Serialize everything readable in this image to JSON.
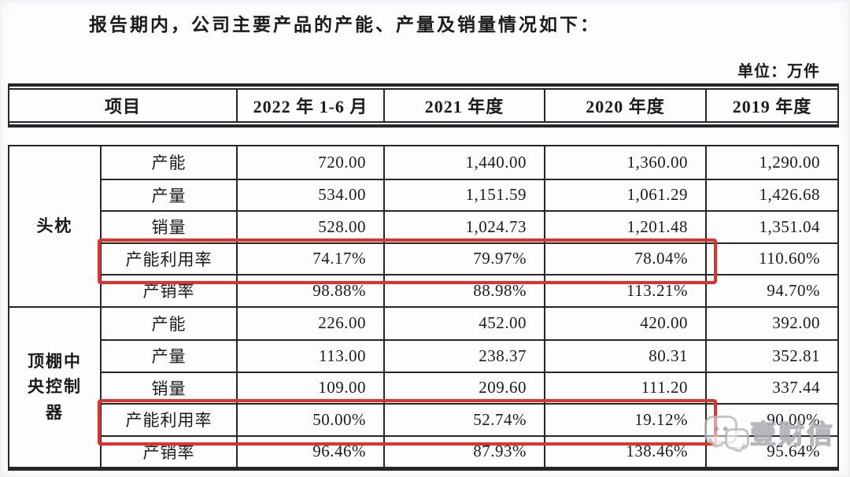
{
  "page": {
    "intro": "报告期内，公司主要产品的产能、产量及销量情况如下：",
    "unit_label": "单位：万件"
  },
  "table": {
    "header": {
      "item_col": "项目",
      "periods": [
        "2022 年 1-6 月",
        "2021 年度",
        "2020 年度",
        "2019 年度"
      ]
    },
    "groups": [
      {
        "name": "头枕",
        "rows": [
          {
            "label": "产能",
            "values": [
              "720.00",
              "1,440.00",
              "1,360.00",
              "1,290.00"
            ],
            "highlight": false
          },
          {
            "label": "产量",
            "values": [
              "534.00",
              "1,151.59",
              "1,061.29",
              "1,426.68"
            ],
            "highlight": false
          },
          {
            "label": "销量",
            "values": [
              "528.00",
              "1,024.73",
              "1,201.48",
              "1,351.04"
            ],
            "highlight": false
          },
          {
            "label": "产能利用率",
            "values": [
              "74.17%",
              "79.97%",
              "78.04%",
              "110.60%"
            ],
            "highlight": true
          },
          {
            "label": "产销率",
            "values": [
              "98.88%",
              "88.98%",
              "113.21%",
              "94.70%"
            ],
            "highlight": false
          }
        ]
      },
      {
        "name": "顶棚中央控制器",
        "rows": [
          {
            "label": "产能",
            "values": [
              "226.00",
              "452.00",
              "420.00",
              "392.00"
            ],
            "highlight": false
          },
          {
            "label": "产量",
            "values": [
              "113.00",
              "238.37",
              "80.31",
              "352.81"
            ],
            "highlight": false
          },
          {
            "label": "销量",
            "values": [
              "109.00",
              "209.60",
              "111.20",
              "337.44"
            ],
            "highlight": false
          },
          {
            "label": "产能利用率",
            "values": [
              "50.00%",
              "52.74%",
              "19.12%",
              "90.00%"
            ],
            "highlight": true
          },
          {
            "label": "产销率",
            "values": [
              "96.46%",
              "87.93%",
              "138.46%",
              "95.64%"
            ],
            "highlight": false
          }
        ]
      }
    ],
    "highlight_color": "#e0312b"
  },
  "watermark": {
    "text": "壹财信",
    "icon": "chat-bubbles-icon",
    "color": "#acacb2"
  }
}
